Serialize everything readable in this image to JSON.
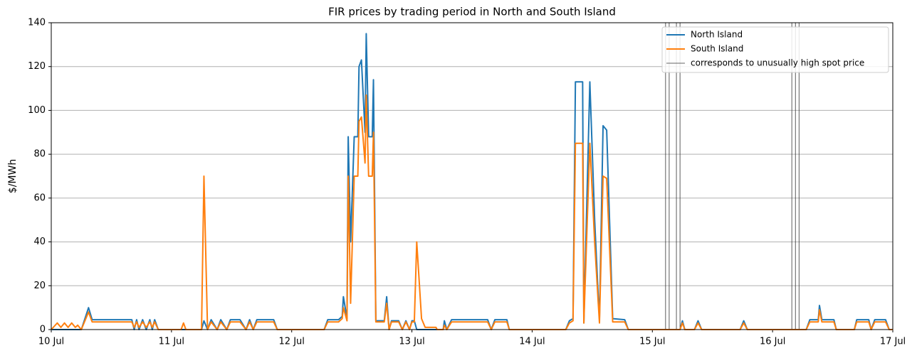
{
  "chart_data": {
    "type": "line",
    "title": "FIR prices by trading period in North and South Island",
    "y_label": "$/MWh",
    "x": [
      10,
      10.05,
      10.08,
      10.11,
      10.14,
      10.17,
      10.2,
      10.22,
      10.25,
      10.31,
      10.34,
      10.67,
      10.69,
      10.71,
      10.73,
      10.76,
      10.79,
      10.82,
      10.84,
      10.86,
      10.89,
      11.08,
      11.1,
      11.12,
      11.25,
      11.27,
      11.3,
      11.33,
      11.38,
      11.41,
      11.46,
      11.49,
      11.57,
      11.62,
      11.65,
      11.68,
      11.71,
      11.85,
      11.88,
      12.27,
      12.3,
      12.39,
      12.42,
      12.43,
      12.46,
      12.47,
      12.49,
      12.52,
      12.55,
      12.56,
      12.58,
      12.61,
      12.62,
      12.64,
      12.67,
      12.68,
      12.7,
      12.77,
      12.79,
      12.81,
      12.83,
      12.89,
      12.92,
      12.95,
      12.98,
      13,
      13.02,
      13.04,
      13.08,
      13.11,
      13.2,
      13.21,
      13.26,
      13.27,
      13.29,
      13.33,
      13.63,
      13.66,
      13.69,
      13.79,
      13.81,
      14.28,
      14.31,
      14.34,
      14.36,
      14.42,
      14.43,
      14.48,
      14.52,
      14.55,
      14.56,
      14.59,
      14.62,
      14.67,
      14.77,
      14.8,
      15.23,
      15.25,
      15.27,
      15.35,
      15.38,
      15.41,
      15.73,
      15.76,
      15.79,
      16.28,
      16.31,
      16.38,
      16.39,
      16.41,
      16.51,
      16.53,
      16.68,
      16.7,
      16.8,
      16.82,
      16.85,
      16.94,
      16.97,
      17
    ],
    "series": [
      {
        "name": "North Island",
        "color": "#1f77b4",
        "values": [
          0,
          0,
          0,
          0,
          0,
          0,
          0,
          0,
          0,
          10,
          4.5,
          4.5,
          0,
          4.5,
          0,
          4.5,
          0,
          4.5,
          0,
          4.5,
          0,
          0,
          0,
          0,
          0,
          4,
          0,
          4.5,
          0,
          4.5,
          0,
          4.5,
          4.5,
          0,
          4.5,
          0,
          4.5,
          4.5,
          0,
          0,
          4.5,
          4.5,
          6,
          15,
          5,
          88,
          40,
          88,
          88,
          120,
          123,
          90,
          135,
          88,
          88,
          114,
          4,
          4,
          15,
          0,
          4,
          4,
          0,
          4,
          0,
          4,
          4,
          0,
          0,
          0,
          0,
          0,
          0,
          4,
          0,
          4.5,
          4.5,
          0,
          4.5,
          4.5,
          0,
          0,
          4,
          5,
          113,
          113,
          3,
          113,
          50,
          15,
          5,
          93,
          91,
          5,
          4.5,
          0,
          0,
          4,
          0,
          0,
          4,
          0,
          0,
          4,
          0,
          0,
          4.5,
          4.5,
          11,
          4.5,
          4.5,
          0,
          0,
          4.5,
          4.5,
          0,
          4.5,
          4.5,
          0,
          0
        ]
      },
      {
        "name": "South Island",
        "color": "#ff7f0e",
        "values": [
          0,
          3,
          1,
          3,
          1,
          3,
          1,
          2,
          0,
          8,
          3.5,
          3.5,
          1,
          3.5,
          1,
          3.5,
          1,
          3.5,
          1,
          3.5,
          0,
          0,
          3,
          0,
          0,
          70,
          0,
          3.5,
          0,
          3.5,
          0,
          3.5,
          3.5,
          0,
          3.5,
          0,
          3.5,
          3.5,
          0,
          0,
          3.5,
          3.5,
          5,
          10,
          4,
          70,
          12,
          70,
          70,
          95,
          97,
          76,
          107,
          70,
          70,
          90,
          3.5,
          3.5,
          12,
          0,
          3.5,
          3.5,
          0,
          3.5,
          0,
          3.5,
          3.5,
          40,
          5,
          1,
          1,
          0,
          0,
          2,
          0,
          3.5,
          3.5,
          0,
          3.5,
          3.5,
          0,
          0,
          3,
          4,
          85,
          85,
          3,
          85,
          40,
          12,
          3,
          70,
          69,
          3.5,
          3.5,
          0,
          0,
          3,
          0,
          0,
          3,
          0,
          0,
          3,
          0,
          0,
          3.5,
          3.5,
          9,
          3.5,
          3.5,
          0,
          0,
          3.5,
          3.5,
          0,
          3.5,
          3.5,
          0,
          0
        ]
      }
    ],
    "vlines": {
      "name": "corresponds to unusually high spot price",
      "color": "#333333",
      "x": [
        15.11,
        15.14,
        15.2,
        15.23,
        16.16,
        16.19,
        16.22
      ]
    },
    "xlim": [
      10,
      17
    ],
    "xticks": [
      {
        "value": 10,
        "label": "10 Jul"
      },
      {
        "value": 11,
        "label": "11 Jul"
      },
      {
        "value": 12,
        "label": "12 Jul"
      },
      {
        "value": 13,
        "label": "13 Jul"
      },
      {
        "value": 14,
        "label": "14 Jul"
      },
      {
        "value": 15,
        "label": "15 Jul"
      },
      {
        "value": 16,
        "label": "16 Jul"
      },
      {
        "value": 17,
        "label": "17 Jul"
      }
    ],
    "ylim": [
      0,
      140
    ],
    "yticks": [
      0,
      20,
      40,
      60,
      80,
      100,
      120,
      140
    ],
    "grid": "y",
    "legend": "upper right"
  }
}
